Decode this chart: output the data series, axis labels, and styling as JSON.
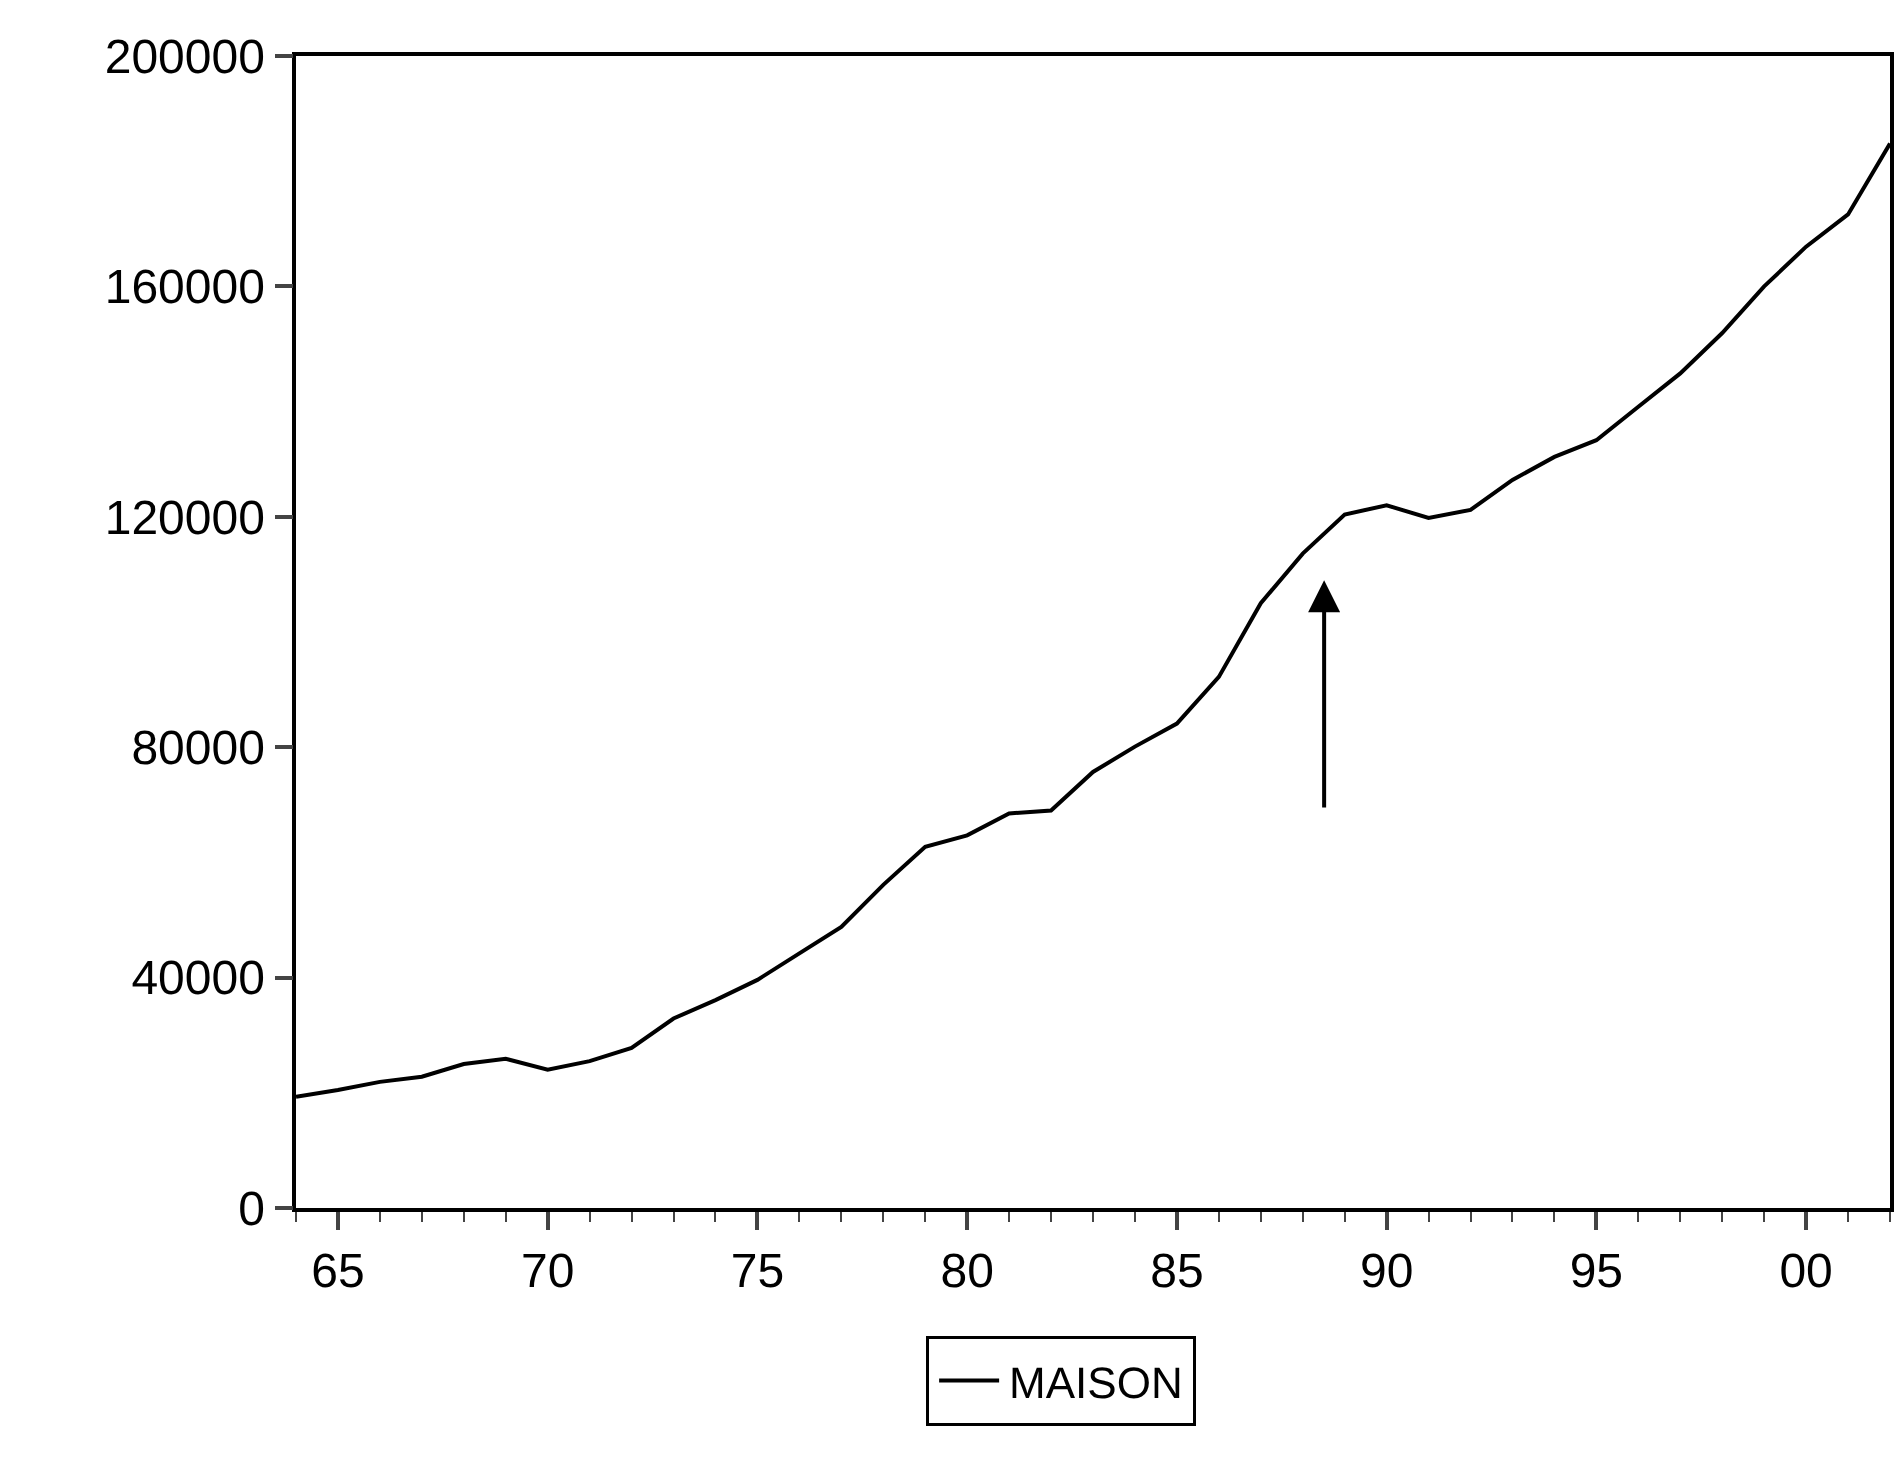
{
  "chart_data": {
    "type": "line",
    "x": [
      1964,
      1965,
      1966,
      1967,
      1968,
      1969,
      1970,
      1971,
      1972,
      1973,
      1974,
      1975,
      1976,
      1977,
      1978,
      1979,
      1980,
      1981,
      1982,
      1983,
      1984,
      1985,
      1986,
      1987,
      1988,
      1989,
      1990,
      1991,
      1992,
      1993,
      1994,
      1995,
      1996,
      1997,
      1998,
      1999,
      2000,
      2001,
      2002
    ],
    "series": [
      {
        "name": "MAISON",
        "color": "#000000",
        "values": [
          19300,
          20500,
          21900,
          22800,
          25000,
          25900,
          24000,
          25500,
          27800,
          32900,
          36100,
          39600,
          44200,
          48800,
          56100,
          62700,
          64700,
          68500,
          69000,
          75700,
          80100,
          84100,
          92200,
          105000,
          113600,
          120400,
          122000,
          119800,
          121200,
          126400,
          130400,
          133300,
          139100,
          144900,
          151900,
          160000,
          166900,
          172500,
          184800
        ]
      }
    ],
    "xlim": [
      1964,
      2002
    ],
    "xticks": [
      {
        "value": 1965,
        "label": "65"
      },
      {
        "value": 1970,
        "label": "70"
      },
      {
        "value": 1975,
        "label": "75"
      },
      {
        "value": 1980,
        "label": "80"
      },
      {
        "value": 1985,
        "label": "85"
      },
      {
        "value": 1990,
        "label": "90"
      },
      {
        "value": 1995,
        "label": "95"
      },
      {
        "value": 2000,
        "label": "00"
      }
    ],
    "ylim": [
      0,
      200000
    ],
    "yticks": [
      0,
      40000,
      80000,
      120000,
      160000,
      200000
    ],
    "grid": false,
    "legend": "bottom",
    "marker": "none",
    "line_style": "solid"
  }
}
